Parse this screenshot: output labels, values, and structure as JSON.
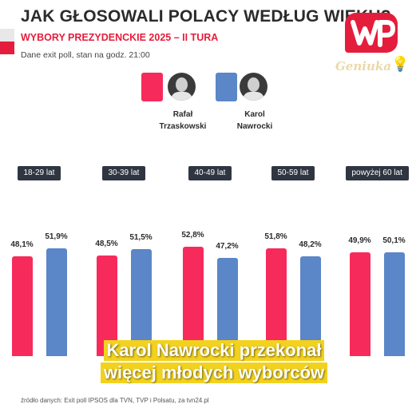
{
  "header": {
    "title": "JAK GŁOSOWALI POLACY WEDŁUG WIEKU?",
    "subtitle": "WYBORY PREZYDENCKIE 2025 – II TURA",
    "note": "Dane exit poll, stan na godz. 21:00",
    "logo": "WP",
    "watermark": "Geniuka"
  },
  "candidates": [
    {
      "name_line1": "Rafał",
      "name_line2": "Trzaskowski",
      "color": "#f72b5b"
    },
    {
      "name_line1": "Karol",
      "name_line2": "Nawrocki",
      "color": "#5b86c8"
    }
  ],
  "chart_data": {
    "type": "bar",
    "categories": [
      "18-29 lat",
      "30-39 lat",
      "40-49 lat",
      "50-59 lat",
      "powyżej 60 lat"
    ],
    "series": [
      {
        "name": "Rafał Trzaskowski",
        "values": [
          48.1,
          48.5,
          52.8,
          51.8,
          49.9
        ],
        "labels": [
          "48,1%",
          "48,5%",
          "52,8%",
          "51,8%",
          "49,9%"
        ],
        "color": "#f72b5b"
      },
      {
        "name": "Karol Nawrocki",
        "values": [
          51.9,
          51.5,
          47.2,
          48.2,
          50.1
        ],
        "labels": [
          "51,9%",
          "51,5%",
          "47,2%",
          "48,2%",
          "50,1%"
        ],
        "color": "#5b86c8"
      }
    ],
    "title": "JAK GŁOSOWALI POLACY WEDŁUG WIEKU?",
    "xlabel": "",
    "ylabel": "",
    "grid": false
  },
  "caption": {
    "line1": "Karol Nawrocki przekonał",
    "line2": "więcej młodych wyborców",
    "color": "#f3d21e"
  },
  "source": "źródło danych: Exit poll IPSOS dla TVN, TVP i Polsatu, za tvn24.pl"
}
